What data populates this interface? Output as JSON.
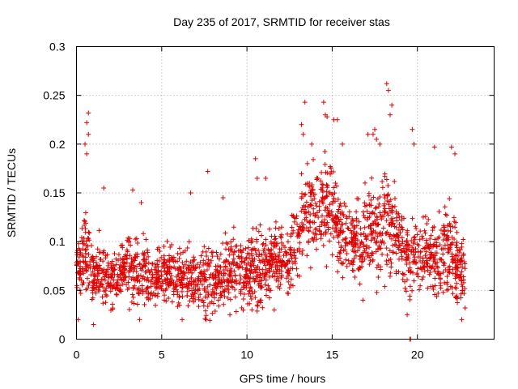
{
  "chart_data": {
    "type": "scatter",
    "title": "Day 235 of 2017, SRMTID for receiver stas",
    "xlabel": "GPS time / hours",
    "ylabel": "SRMTID / TECUs",
    "xlim": [
      0,
      24.5
    ],
    "ylim": [
      0,
      0.3
    ],
    "xticks": [
      "0",
      "5",
      "10",
      "15",
      "20"
    ],
    "yticks": [
      "0",
      "0.05",
      "0.1",
      "0.15",
      "0.2",
      "0.25",
      "0.3"
    ],
    "grid": true,
    "marker": "+",
    "color": "#e00000",
    "series": [
      {
        "name": "SRMTID",
        "profile_hours": [
          0,
          0.5,
          1,
          1.5,
          2,
          2.5,
          3,
          3.5,
          4,
          4.5,
          5,
          5.5,
          6,
          6.5,
          7,
          7.5,
          8,
          8.5,
          9,
          9.5,
          10,
          10.5,
          11,
          11.5,
          12,
          12.5,
          13,
          13.5,
          14,
          14.5,
          15,
          15.5,
          16,
          16.5,
          17,
          17.5,
          18,
          18.5,
          19,
          19.5,
          20,
          20.5,
          21,
          21.5,
          22,
          22.5,
          22.8
        ],
        "profile_center": [
          0.075,
          0.09,
          0.065,
          0.07,
          0.06,
          0.065,
          0.075,
          0.07,
          0.065,
          0.06,
          0.065,
          0.07,
          0.06,
          0.065,
          0.06,
          0.065,
          0.06,
          0.065,
          0.075,
          0.07,
          0.065,
          0.075,
          0.07,
          0.08,
          0.085,
          0.08,
          0.1,
          0.13,
          0.14,
          0.135,
          0.14,
          0.105,
          0.1,
          0.1,
          0.105,
          0.11,
          0.12,
          0.115,
          0.1,
          0.08,
          0.09,
          0.09,
          0.085,
          0.09,
          0.09,
          0.07,
          0.065
        ],
        "profile_spread": [
          0.02,
          0.04,
          0.03,
          0.03,
          0.025,
          0.025,
          0.03,
          0.035,
          0.03,
          0.025,
          0.025,
          0.025,
          0.025,
          0.03,
          0.025,
          0.035,
          0.025,
          0.025,
          0.03,
          0.03,
          0.025,
          0.04,
          0.03,
          0.03,
          0.035,
          0.035,
          0.04,
          0.05,
          0.05,
          0.05,
          0.045,
          0.035,
          0.03,
          0.035,
          0.04,
          0.05,
          0.055,
          0.04,
          0.035,
          0.04,
          0.035,
          0.035,
          0.04,
          0.045,
          0.045,
          0.03,
          0.025
        ],
        "notable_points": [
          [
            0.7,
            0.232
          ],
          [
            0.6,
            0.222
          ],
          [
            0.5,
            0.2
          ],
          [
            0.6,
            0.19
          ],
          [
            0.7,
            0.21
          ],
          [
            1.6,
            0.155
          ],
          [
            3.3,
            0.153
          ],
          [
            3.8,
            0.14
          ],
          [
            6.7,
            0.15
          ],
          [
            7.7,
            0.172
          ],
          [
            8.6,
            0.145
          ],
          [
            10.5,
            0.185
          ],
          [
            10.6,
            0.165
          ],
          [
            11.1,
            0.165
          ],
          [
            13.4,
            0.243
          ],
          [
            13.2,
            0.22
          ],
          [
            13.3,
            0.21
          ],
          [
            13.8,
            0.2
          ],
          [
            14.5,
            0.243
          ],
          [
            14.6,
            0.23
          ],
          [
            14.7,
            0.228
          ],
          [
            15.1,
            0.225
          ],
          [
            15.3,
            0.225
          ],
          [
            15.6,
            0.2
          ],
          [
            17.1,
            0.21
          ],
          [
            17.4,
            0.21
          ],
          [
            17.5,
            0.215
          ],
          [
            17.6,
            0.205
          ],
          [
            17.8,
            0.2
          ],
          [
            18.2,
            0.262
          ],
          [
            18.3,
            0.255
          ],
          [
            18.5,
            0.24
          ],
          [
            18.4,
            0.23
          ],
          [
            19.7,
            0.215
          ],
          [
            19.8,
            0.2
          ],
          [
            21.0,
            0.197
          ],
          [
            22.0,
            0.197
          ],
          [
            22.2,
            0.19
          ],
          [
            19.55,
            0.0
          ],
          [
            19.6,
            0.0
          ],
          [
            0.1,
            0.02
          ],
          [
            1.0,
            0.015
          ],
          [
            3.7,
            0.02
          ],
          [
            6.2,
            0.02
          ],
          [
            7.6,
            0.02
          ],
          [
            9.0,
            0.025
          ],
          [
            11.6,
            0.03
          ],
          [
            16.8,
            0.04
          ],
          [
            19.4,
            0.025
          ],
          [
            22.6,
            0.02
          ],
          [
            22.8,
            0.032
          ]
        ]
      }
    ]
  }
}
